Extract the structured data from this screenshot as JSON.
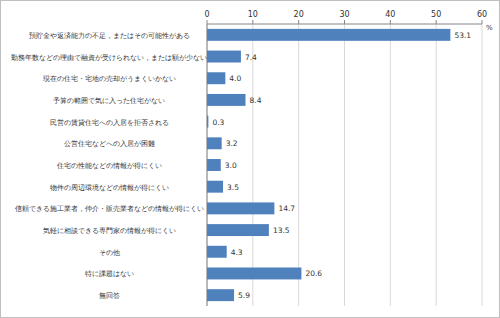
{
  "chart_data": {
    "type": "bar",
    "orientation": "horizontal",
    "categories": [
      "預貯金や返済能力の不足，またはその可能性がある",
      "勤務年数などの理由で融資が受けられない，または額が少ない",
      "現在の住宅・宅地の売却がうまくいかない",
      "予算の範囲で気に入った住宅がない",
      "民営の賃貸住宅への入居を拒否される",
      "公営住宅などへの入居が困難",
      "住宅の性能などの情報が得にくい",
      "物件の周辺環境などの情報が得にくい",
      "信頼できる施工業者，仲介・販売業者などの情報が得にくい",
      "気軽に相談できる専門家の情報が得にくい",
      "その他",
      "特に課題はない",
      "無回答"
    ],
    "values": [
      53.1,
      7.4,
      4.0,
      8.4,
      0.3,
      3.2,
      3.0,
      3.5,
      14.7,
      13.5,
      4.3,
      20.6,
      5.9
    ],
    "value_labels": [
      "53.1",
      "7.4",
      "4.0",
      "8.4",
      "0.3",
      "3.2",
      "3.0",
      "3.5",
      "14.7",
      "13.5",
      "4.3",
      "20.6",
      "5.9"
    ],
    "color": "#4f81bd",
    "xlabel": "%",
    "xlim": [
      0,
      60
    ],
    "xticks": [
      0,
      10,
      20,
      30,
      40,
      50,
      60
    ],
    "grid": true,
    "data_labels": true
  }
}
